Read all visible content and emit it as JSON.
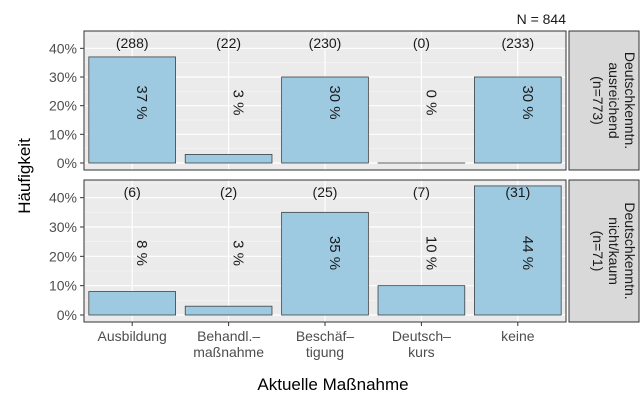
{
  "chart_data": {
    "type": "bar",
    "note_text": "N = 844",
    "xlabel": "Aktuelle Maßnahme",
    "ylabel": "Häufigkeit",
    "ylim": [
      0,
      0.45
    ],
    "yticks": [
      "0%",
      "10%",
      "20%",
      "30%",
      "40%"
    ],
    "categories": [
      [
        "Ausbildung"
      ],
      [
        "Behandl.–",
        "maßnahme"
      ],
      [
        "Beschäf–",
        "tigung"
      ],
      [
        "Deutsch–",
        "kurs"
      ],
      [
        "keine"
      ]
    ],
    "colors": {
      "bar": "#9ecae1",
      "bar_stroke": "#404040",
      "panel": "#ebebeb",
      "grid": "#ffffff",
      "strip": "#d9d9d9"
    },
    "panels": [
      {
        "strip_label": [
          "Deutschkenntn.",
          "ausreichend",
          "(n=773)"
        ],
        "values": [
          0.37,
          0.03,
          0.3,
          0.0,
          0.3
        ],
        "counts": [
          "(288)",
          "(22)",
          "(230)",
          "(0)",
          "(233)"
        ],
        "pct_labels": [
          "37 %",
          "3 %",
          "30 %",
          "0 %",
          "30 %"
        ]
      },
      {
        "strip_label": [
          "Deutschkenntn.",
          "nicht/kaum",
          "(n=71)"
        ],
        "values": [
          0.08,
          0.03,
          0.35,
          0.1,
          0.44
        ],
        "counts": [
          "(6)",
          "(2)",
          "(25)",
          "(7)",
          "(31)"
        ],
        "pct_labels": [
          "8 %",
          "3 %",
          "35 %",
          "10 %",
          "44 %"
        ]
      }
    ]
  }
}
